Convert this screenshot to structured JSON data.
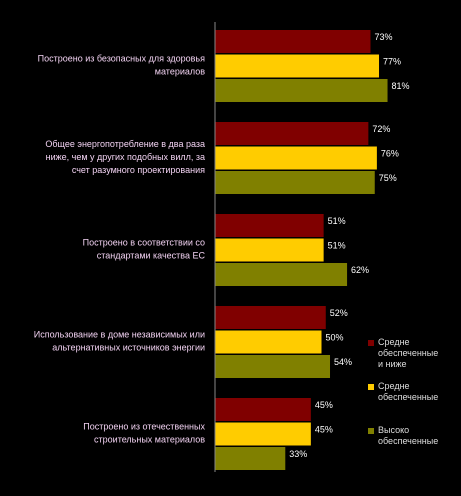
{
  "chart_data": {
    "type": "bar",
    "orientation": "horizontal",
    "categories": [
      "Построено из безопасных для здоровья материалов",
      "Общее энергопотребление в два раза ниже, чем у других подобных вилл, за счет разумного проектирования",
      "Построено в соответствии со стандартами качества ЕС",
      "Использование в доме независимых или альтернативных источников энергии",
      "Построено из отечественных строительных материалов"
    ],
    "series": [
      {
        "name": "Средне обеспеченные и ниже",
        "color": "#800000",
        "values": [
          73,
          72,
          51,
          52,
          45
        ],
        "value_labels": [
          "73%",
          "72%",
          "51%",
          "52%",
          "45%"
        ]
      },
      {
        "name": "Средне обеспеченные",
        "color": "#ffcc00",
        "values": [
          77,
          76,
          51,
          50,
          45
        ],
        "value_labels": [
          "77%",
          "76%",
          "51%",
          "50%",
          "45%"
        ]
      },
      {
        "name": "Высоко обеспеченные",
        "color": "#808000",
        "values": [
          81,
          75,
          62,
          54,
          33
        ],
        "value_labels": [
          "81%",
          "75%",
          "62%",
          "54%",
          "33%"
        ]
      }
    ],
    "legend": "right"
  }
}
